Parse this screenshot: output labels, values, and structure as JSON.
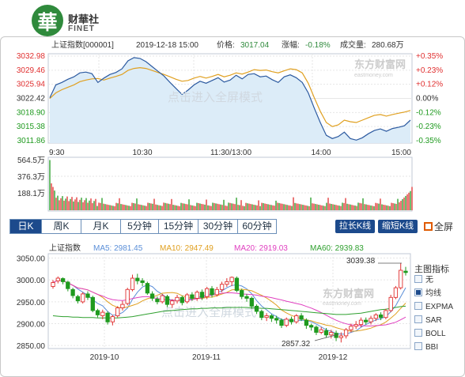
{
  "brand": {
    "logo_char": "華",
    "name_cn": "财華社",
    "name_en": "FINET"
  },
  "intraday": {
    "title": "上证指数[000001]",
    "time": "2019-12-18 15:00",
    "price_label": "价格:",
    "price": "3017.04",
    "change_label": "涨幅:",
    "change": "-0.18%",
    "volume_label": "成交量:",
    "volume": "280.68万",
    "price_axis": [
      "3032.98",
      "3029.46",
      "3025.94",
      "3022.42",
      "3018.90",
      "3015.38",
      "3011.86"
    ],
    "pct_axis": [
      "+0.35%",
      "+0.23%",
      "+0.12%",
      "0.00%",
      "-0.12%",
      "-0.23%",
      "-0.35%"
    ],
    "time_axis": [
      "9:30",
      "10:30",
      "11:30/13:00",
      "14:00",
      "15:00"
    ],
    "volume_axis": [
      "564.5万",
      "376.3万",
      "188.1万"
    ],
    "watermark": "点击进入全屏模式",
    "logo_watermark": "东方财富网",
    "logo_watermark_en": "eastmoney.com",
    "colors": {
      "price_line": "#2c5aa0",
      "avg_line": "#e0a020",
      "up": "#e03030",
      "down": "#1f9a1f",
      "fill": "#dcecf8"
    }
  },
  "toolbar": {
    "tabs": [
      "日K",
      "周K",
      "月K",
      "5分钟",
      "15分钟",
      "30分钟",
      "60分钟"
    ],
    "active_tab": 0,
    "stretch_label": "拉长K线",
    "shrink_label": "缩短K线",
    "fullscreen_label": "全屏"
  },
  "kline": {
    "title": "上证指数",
    "ma5": "MA5: 2981.45",
    "ma10": "MA10: 2947.49",
    "ma20": "MA20: 2919.03",
    "ma60": "MA60: 2939.83",
    "y_axis": [
      "3050.00",
      "3000.00",
      "2950.00",
      "2900.00",
      "2850.00"
    ],
    "x_axis": [
      "2019-10",
      "2019-11",
      "2019-12"
    ],
    "high_note": "3039.38",
    "low_note": "2857.32",
    "watermark": "点击进入全屏模式",
    "logo_watermark": "东方财富网",
    "logo_watermark_en": "eastmoney.com",
    "colors": {
      "ma5": "#5b8fd8",
      "ma10": "#e0a020",
      "ma20": "#e040c0",
      "ma60": "#2fa02f"
    }
  },
  "sidebar": {
    "title": "主图指标",
    "items": [
      {
        "label": "无",
        "checked": false
      },
      {
        "label": "均线",
        "checked": true
      },
      {
        "label": "EXPMA",
        "checked": false
      },
      {
        "label": "SAR",
        "checked": false
      },
      {
        "label": "BOLL",
        "checked": false
      },
      {
        "label": "BBI",
        "checked": false
      }
    ]
  }
}
